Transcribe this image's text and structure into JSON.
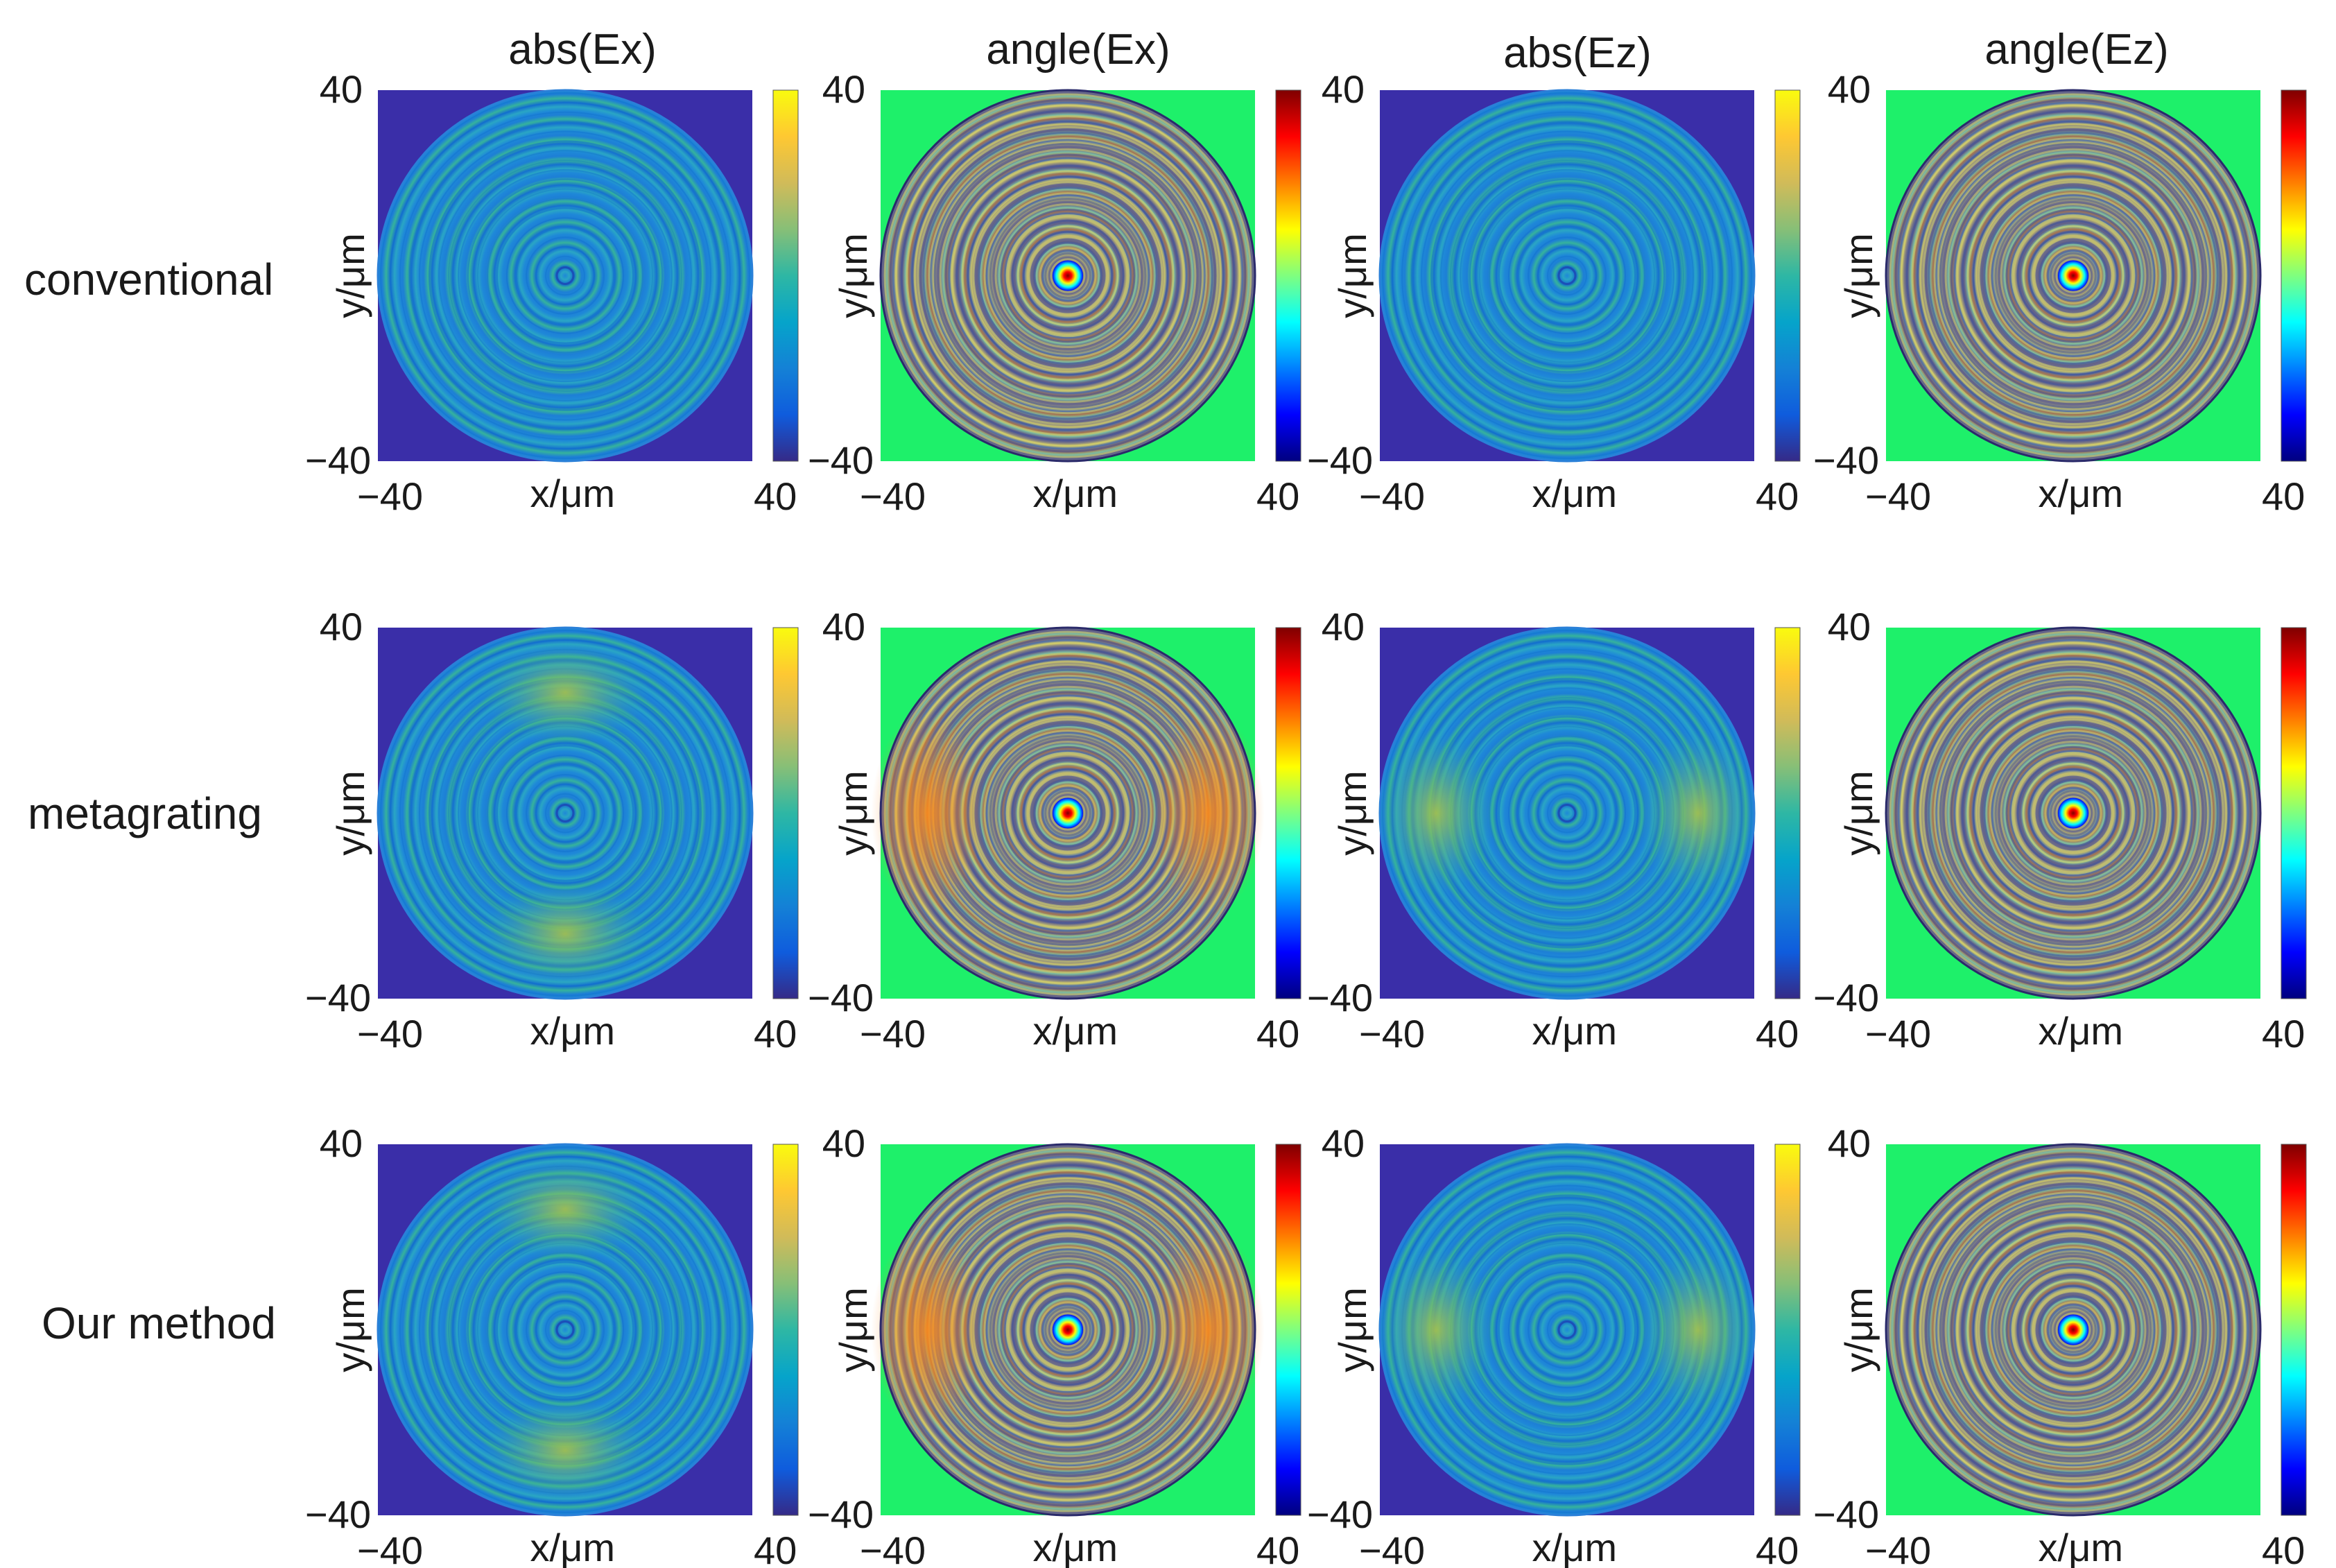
{
  "chart_data": {
    "type": "heatmap",
    "columns": [
      "abs(Ex)",
      "angle(Ex)",
      "abs(Ez)",
      "angle(Ez)"
    ],
    "rows": [
      "conventional",
      "metagrating",
      "Our method"
    ],
    "xlabel": "x/μm",
    "ylabel": "y/μm",
    "xlim": [
      -40,
      40
    ],
    "ylim": [
      -40,
      40
    ],
    "xticks": [
      "−40",
      "40"
    ],
    "yticks": [
      "40",
      "−40"
    ],
    "colormap_abs": "parula",
    "colormap_angle": "jet",
    "colors": {
      "abs_background": "#3a2ea8",
      "angle_background": "#1ef06a",
      "parula": [
        "#352a87",
        "#0f5cdd",
        "#1481d6",
        "#06a4ca",
        "#2eb7a4",
        "#87bf77",
        "#d1bb59",
        "#fec832",
        "#f9fb0e"
      ],
      "jet": [
        "#00007f",
        "#0000ff",
        "#007fff",
        "#00ffff",
        "#7fff7f",
        "#ffff00",
        "#ff7f00",
        "#ff0000",
        "#7f0000"
      ]
    }
  }
}
